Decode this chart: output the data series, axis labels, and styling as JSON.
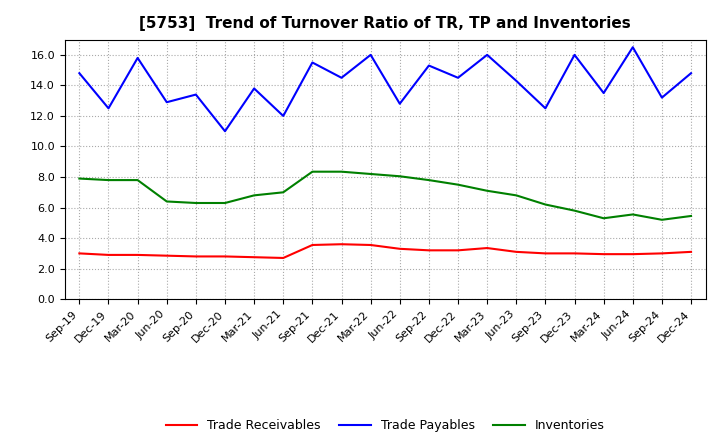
{
  "title": "[5753]  Trend of Turnover Ratio of TR, TP and Inventories",
  "x_labels": [
    "Sep-19",
    "Dec-19",
    "Mar-20",
    "Jun-20",
    "Sep-20",
    "Dec-20",
    "Mar-21",
    "Jun-21",
    "Sep-21",
    "Dec-21",
    "Mar-22",
    "Jun-22",
    "Sep-22",
    "Dec-22",
    "Mar-23",
    "Jun-23",
    "Sep-23",
    "Dec-23",
    "Mar-24",
    "Jun-24",
    "Sep-24",
    "Dec-24"
  ],
  "trade_receivables": [
    3.0,
    2.9,
    2.9,
    2.85,
    2.8,
    2.8,
    2.75,
    2.7,
    3.55,
    3.6,
    3.55,
    3.3,
    3.2,
    3.2,
    3.35,
    3.1,
    3.0,
    3.0,
    2.95,
    2.95,
    3.0,
    3.1
  ],
  "trade_payables": [
    14.8,
    12.5,
    15.8,
    12.9,
    13.4,
    11.0,
    13.8,
    12.0,
    15.5,
    14.5,
    16.0,
    12.8,
    15.3,
    14.5,
    16.0,
    14.3,
    12.5,
    16.0,
    13.5,
    16.5,
    13.2,
    14.8
  ],
  "inventories": [
    7.9,
    7.8,
    7.8,
    6.4,
    6.3,
    6.3,
    6.8,
    7.0,
    8.35,
    8.35,
    8.2,
    8.05,
    7.8,
    7.5,
    7.1,
    6.8,
    6.2,
    5.8,
    5.3,
    5.55,
    5.2,
    5.45
  ],
  "ylim": [
    0.0,
    17.0
  ],
  "yticks": [
    0.0,
    2.0,
    4.0,
    6.0,
    8.0,
    10.0,
    12.0,
    14.0,
    16.0
  ],
  "color_tr": "#ff0000",
  "color_tp": "#0000ff",
  "color_inv": "#008000",
  "bg_color": "#ffffff",
  "grid_color": "#aaaaaa",
  "title_fontsize": 11,
  "axis_fontsize": 8,
  "legend_labels": [
    "Trade Receivables",
    "Trade Payables",
    "Inventories"
  ]
}
